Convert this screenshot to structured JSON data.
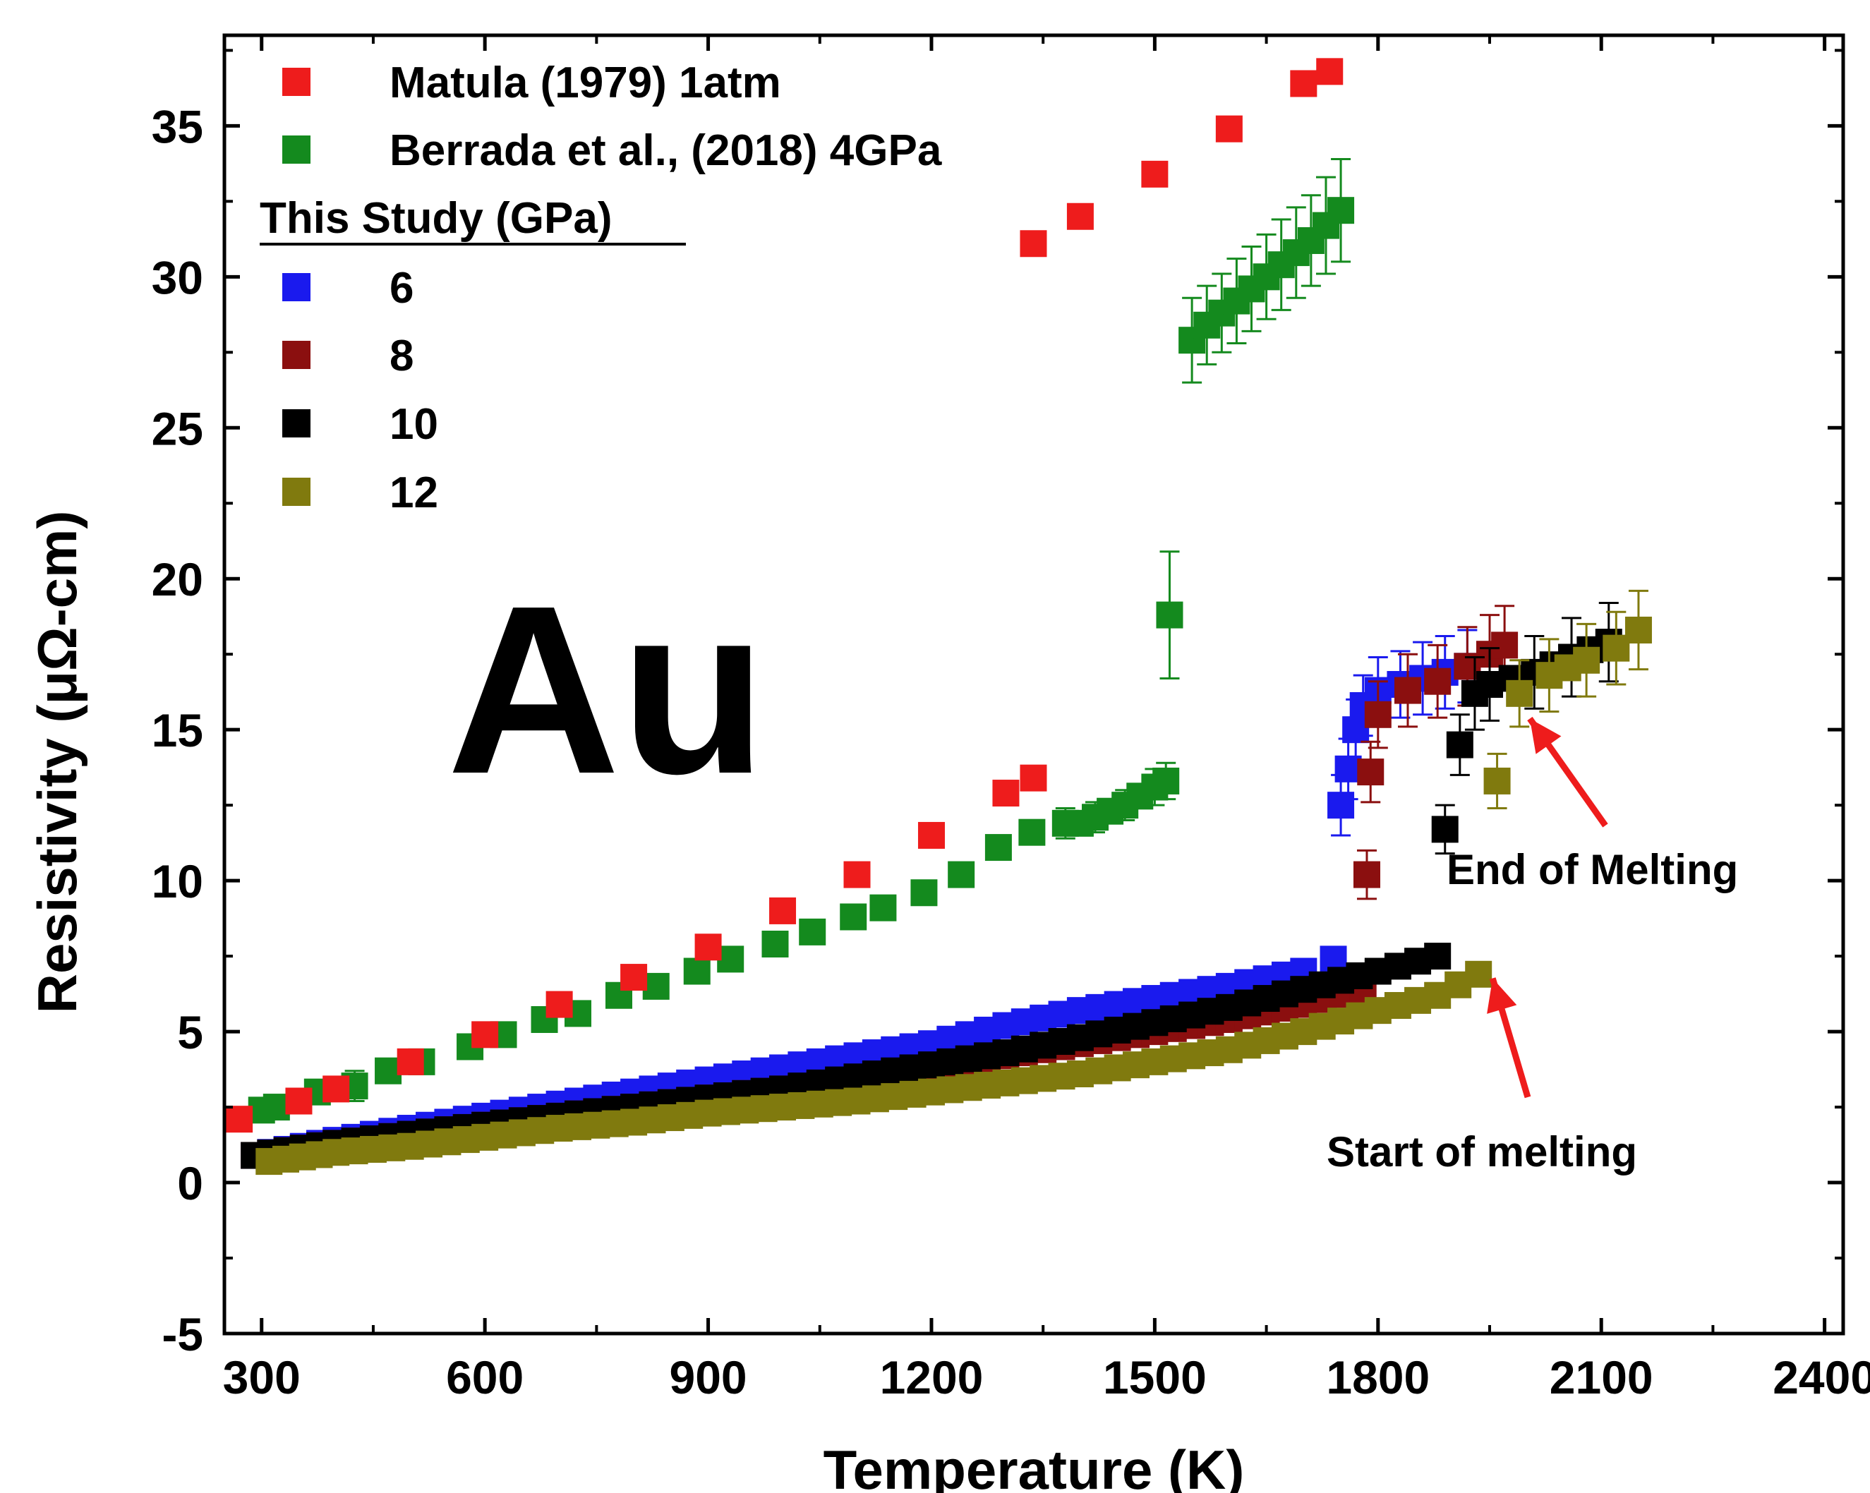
{
  "chart_data": {
    "type": "scatter",
    "title": "",
    "big_label": "Au",
    "xlabel": "Temperature (K)",
    "ylabel": "Resistivity (μΩ-cm)",
    "xlim": [
      250,
      2425
    ],
    "ylim": [
      -5,
      38
    ],
    "x_ticks": [
      300,
      600,
      900,
      1200,
      1500,
      1800,
      2100,
      2400
    ],
    "y_ticks": [
      -5,
      0,
      5,
      10,
      15,
      20,
      25,
      30,
      35
    ],
    "grid": false,
    "legend_heading": "This Study (GPa)",
    "annotations": [
      {
        "text": "End of Melting",
        "arrow_to": [
          1985,
          15.6
        ]
      },
      {
        "text": "Start of melting",
        "arrow_to": [
          1935,
          7.0
        ]
      }
    ],
    "series": [
      {
        "name": "Matula (1979) 1atm",
        "color": "#ee1c1c",
        "points": [
          [
            270,
            2.1
          ],
          [
            350,
            2.7
          ],
          [
            400,
            3.1
          ],
          [
            500,
            4.0
          ],
          [
            600,
            4.9
          ],
          [
            700,
            5.9
          ],
          [
            800,
            6.8
          ],
          [
            900,
            7.8
          ],
          [
            1000,
            9.0
          ],
          [
            1100,
            10.2
          ],
          [
            1200,
            11.5
          ],
          [
            1300,
            12.9
          ],
          [
            1337,
            13.4
          ],
          [
            1337,
            31.1
          ],
          [
            1400,
            32.0
          ],
          [
            1500,
            33.4
          ],
          [
            1600,
            34.9
          ],
          [
            1700,
            36.4
          ],
          [
            1735,
            36.8
          ]
        ]
      },
      {
        "name": "Berrada et al., (2018) 4GPa",
        "color": "#148a1e",
        "points": [
          [
            300,
            2.4
          ],
          [
            320,
            2.5
          ],
          [
            375,
            3.0
          ],
          [
            425,
            3.2
          ],
          [
            470,
            3.7
          ],
          [
            515,
            4.0
          ],
          [
            580,
            4.5
          ],
          [
            625,
            4.9
          ],
          [
            680,
            5.4
          ],
          [
            725,
            5.6
          ],
          [
            780,
            6.2
          ],
          [
            830,
            6.5
          ],
          [
            885,
            7.0
          ],
          [
            930,
            7.4
          ],
          [
            990,
            7.9
          ],
          [
            1040,
            8.3
          ],
          [
            1095,
            8.8
          ],
          [
            1135,
            9.1
          ],
          [
            1190,
            9.6
          ],
          [
            1240,
            10.2
          ],
          [
            1290,
            11.1
          ],
          [
            1335,
            11.6
          ],
          [
            1380,
            11.9
          ],
          [
            1400,
            11.9
          ],
          [
            1420,
            12.1
          ],
          [
            1440,
            12.3
          ],
          [
            1460,
            12.5
          ],
          [
            1480,
            12.8
          ],
          [
            1500,
            13.1
          ],
          [
            1515,
            13.3
          ],
          [
            1520,
            18.8
          ],
          [
            1550,
            27.9
          ],
          [
            1570,
            28.4
          ],
          [
            1590,
            28.8
          ],
          [
            1610,
            29.2
          ],
          [
            1630,
            29.6
          ],
          [
            1650,
            30.0
          ],
          [
            1670,
            30.4
          ],
          [
            1690,
            30.8
          ],
          [
            1710,
            31.2
          ],
          [
            1730,
            31.7
          ],
          [
            1750,
            32.2
          ]
        ],
        "error_bars": [
          [
            425,
            0.5
          ],
          [
            1520,
            2.1
          ],
          [
            1550,
            1.4
          ],
          [
            1570,
            1.3
          ],
          [
            1590,
            1.3
          ],
          [
            1610,
            1.4
          ],
          [
            1630,
            1.4
          ],
          [
            1650,
            1.4
          ],
          [
            1670,
            1.5
          ],
          [
            1690,
            1.5
          ],
          [
            1710,
            1.5
          ],
          [
            1730,
            1.6
          ],
          [
            1750,
            1.7
          ],
          [
            1380,
            0.5
          ],
          [
            1420,
            0.5
          ],
          [
            1460,
            0.5
          ],
          [
            1500,
            0.6
          ],
          [
            1515,
            0.6
          ]
        ]
      },
      {
        "name": "6",
        "color": "#1a1aee",
        "points": [
          [
            290,
            0.9
          ],
          [
            400,
            1.4
          ],
          [
            500,
            1.8
          ],
          [
            600,
            2.2
          ],
          [
            700,
            2.6
          ],
          [
            800,
            3.0
          ],
          [
            900,
            3.4
          ],
          [
            1000,
            3.8
          ],
          [
            1100,
            4.2
          ],
          [
            1200,
            4.6
          ],
          [
            1300,
            5.2
          ],
          [
            1400,
            5.7
          ],
          [
            1500,
            6.1
          ],
          [
            1600,
            6.5
          ],
          [
            1700,
            7.0
          ],
          [
            1740,
            7.4
          ],
          [
            1750,
            12.5
          ],
          [
            1760,
            13.7
          ],
          [
            1770,
            15.0
          ],
          [
            1780,
            15.8
          ],
          [
            1800,
            16.3
          ],
          [
            1830,
            16.5
          ],
          [
            1860,
            16.7
          ],
          [
            1890,
            16.9
          ],
          [
            1920,
            17.1
          ]
        ],
        "error_bars": [
          [
            1750,
            1.0
          ],
          [
            1760,
            1.0
          ],
          [
            1770,
            1.0
          ],
          [
            1780,
            1.0
          ],
          [
            1800,
            1.1
          ],
          [
            1830,
            1.1
          ],
          [
            1860,
            1.2
          ],
          [
            1890,
            1.2
          ],
          [
            1920,
            1.2
          ]
        ]
      },
      {
        "name": "8",
        "color": "#8b0f0f",
        "points": [
          [
            290,
            0.9
          ],
          [
            400,
            1.3
          ],
          [
            500,
            1.6
          ],
          [
            600,
            1.9
          ],
          [
            700,
            2.2
          ],
          [
            800,
            2.5
          ],
          [
            900,
            2.8
          ],
          [
            1000,
            3.1
          ],
          [
            1100,
            3.4
          ],
          [
            1200,
            3.8
          ],
          [
            1300,
            4.2
          ],
          [
            1400,
            4.6
          ],
          [
            1500,
            5.0
          ],
          [
            1600,
            5.4
          ],
          [
            1700,
            5.9
          ],
          [
            1780,
            6.4
          ],
          [
            1785,
            10.2
          ],
          [
            1790,
            13.6
          ],
          [
            1800,
            15.5
          ],
          [
            1840,
            16.3
          ],
          [
            1880,
            16.6
          ],
          [
            1920,
            17.1
          ],
          [
            1950,
            17.5
          ],
          [
            1970,
            17.8
          ]
        ],
        "error_bars": [
          [
            1785,
            0.8
          ],
          [
            1790,
            1.0
          ],
          [
            1800,
            1.1
          ],
          [
            1840,
            1.2
          ],
          [
            1880,
            1.2
          ],
          [
            1920,
            1.3
          ],
          [
            1950,
            1.3
          ],
          [
            1970,
            1.3
          ]
        ]
      },
      {
        "name": "10",
        "color": "#000000",
        "points": [
          [
            290,
            0.9
          ],
          [
            400,
            1.3
          ],
          [
            500,
            1.6
          ],
          [
            600,
            1.9
          ],
          [
            700,
            2.2
          ],
          [
            800,
            2.5
          ],
          [
            900,
            2.8
          ],
          [
            1000,
            3.1
          ],
          [
            1100,
            3.5
          ],
          [
            1200,
            3.9
          ],
          [
            1300,
            4.3
          ],
          [
            1400,
            4.8
          ],
          [
            1500,
            5.3
          ],
          [
            1600,
            5.8
          ],
          [
            1700,
            6.4
          ],
          [
            1800,
            7.0
          ],
          [
            1880,
            7.5
          ],
          [
            1890,
            11.7
          ],
          [
            1910,
            14.5
          ],
          [
            1930,
            16.2
          ],
          [
            1950,
            16.5
          ],
          [
            2010,
            16.9
          ],
          [
            2060,
            17.4
          ],
          [
            2110,
            17.9
          ]
        ],
        "error_bars": [
          [
            1890,
            0.8
          ],
          [
            1910,
            1.0
          ],
          [
            1930,
            1.2
          ],
          [
            1950,
            1.2
          ],
          [
            2010,
            1.2
          ],
          [
            2060,
            1.3
          ],
          [
            2110,
            1.3
          ]
        ]
      },
      {
        "name": "12",
        "color": "#807a0e",
        "points": [
          [
            310,
            0.7
          ],
          [
            400,
            1.0
          ],
          [
            500,
            1.2
          ],
          [
            600,
            1.5
          ],
          [
            700,
            1.8
          ],
          [
            800,
            2.0
          ],
          [
            900,
            2.3
          ],
          [
            1000,
            2.5
          ],
          [
            1100,
            2.7
          ],
          [
            1200,
            3.0
          ],
          [
            1300,
            3.3
          ],
          [
            1400,
            3.6
          ],
          [
            1500,
            4.0
          ],
          [
            1600,
            4.4
          ],
          [
            1700,
            5.0
          ],
          [
            1800,
            5.7
          ],
          [
            1880,
            6.2
          ],
          [
            1935,
            6.9
          ],
          [
            1960,
            13.3
          ],
          [
            1990,
            16.2
          ],
          [
            2030,
            16.8
          ],
          [
            2080,
            17.3
          ],
          [
            2120,
            17.7
          ],
          [
            2150,
            18.3
          ]
        ],
        "error_bars": [
          [
            1960,
            0.9
          ],
          [
            1990,
            1.1
          ],
          [
            2030,
            1.2
          ],
          [
            2080,
            1.2
          ],
          [
            2120,
            1.2
          ],
          [
            2150,
            1.3
          ]
        ]
      }
    ]
  }
}
